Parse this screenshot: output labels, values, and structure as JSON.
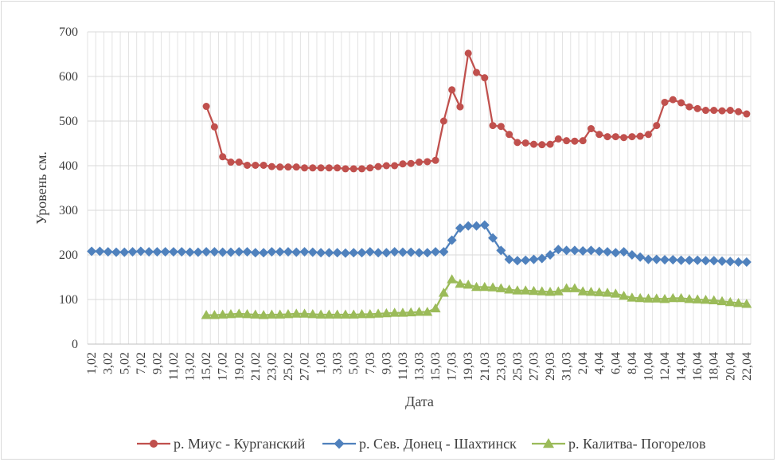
{
  "chart_data": {
    "type": "line",
    "xlabel": "Дата",
    "ylabel": "Уровень см.",
    "ylim": [
      0,
      700
    ],
    "yticks": [
      0,
      100,
      200,
      300,
      400,
      500,
      600,
      700
    ],
    "grid": true,
    "legend_position": "bottom",
    "x": [
      "1,02",
      "2,02",
      "3,02",
      "4,02",
      "5,02",
      "6,02",
      "7,02",
      "8,02",
      "9,02",
      "10,02",
      "11,02",
      "12,02",
      "13,02",
      "14,02",
      "15,02",
      "16,02",
      "17,02",
      "18,02",
      "19,02",
      "20,02",
      "21,02",
      "22,02",
      "23,02",
      "24,02",
      "25,02",
      "26,02",
      "27,02",
      "28,02",
      "1,03",
      "2,03",
      "3,03",
      "4,03",
      "5,03",
      "6,03",
      "7,03",
      "8,03",
      "9,03",
      "10,03",
      "11,03",
      "12,03",
      "13,03",
      "14,03",
      "15,03",
      "16,03",
      "17,03",
      "18,03",
      "19,03",
      "20,03",
      "21,03",
      "22,03",
      "23,03",
      "24,03",
      "25,03",
      "26,03",
      "27,03",
      "28,03",
      "29,03",
      "30,03",
      "31,03",
      "1,04",
      "2,04",
      "3,04",
      "4,04",
      "5,04",
      "6,04",
      "7,04",
      "8,04",
      "9,04",
      "10,04",
      "11,04",
      "12,04",
      "13,04",
      "14,04",
      "15,04",
      "16,04",
      "17,04",
      "18,04",
      "19,04",
      "20,04",
      "21,04",
      "22,04"
    ],
    "x_tick_labels": [
      "1,02",
      "3,02",
      "5,02",
      "7,02",
      "9,02",
      "11,02",
      "13,02",
      "15,02",
      "17,02",
      "19,02",
      "21,02",
      "23,02",
      "25,02",
      "27,02",
      "1,03",
      "3,03",
      "5,03",
      "7,03",
      "9,03",
      "11,03",
      "13,03",
      "15,03",
      "17,03",
      "19,03",
      "21,03",
      "23,03",
      "25,03",
      "27,03",
      "29,03",
      "31,03",
      "2,04",
      "4,04",
      "6,04",
      "8,04",
      "10,04",
      "12,04",
      "14,04",
      "16,04",
      "18,04",
      "20,04",
      "22,04"
    ],
    "series": [
      {
        "name": "р. Миус - Курганский",
        "color": "#c0504d",
        "marker": "circle",
        "values": [
          null,
          null,
          null,
          null,
          null,
          null,
          null,
          null,
          null,
          null,
          null,
          null,
          null,
          null,
          533,
          487,
          420,
          408,
          408,
          401,
          401,
          401,
          398,
          397,
          397,
          397,
          395,
          395,
          395,
          395,
          395,
          393,
          393,
          393,
          395,
          398,
          400,
          400,
          404,
          405,
          408,
          409,
          412,
          500,
          570,
          532,
          652,
          609,
          597,
          490,
          488,
          470,
          452,
          451,
          448,
          447,
          448,
          460,
          456,
          455,
          456,
          483,
          470,
          465,
          465,
          463,
          465,
          466,
          470,
          490,
          542,
          548,
          541,
          532,
          528,
          524,
          524,
          523,
          524,
          521,
          516
        ]
      },
      {
        "name": "р. Сев. Донец - Шахтинск",
        "color": "#4f81bd",
        "marker": "diamond",
        "values": [
          208,
          208,
          207,
          206,
          206,
          207,
          208,
          207,
          207,
          207,
          207,
          207,
          206,
          206,
          207,
          207,
          206,
          206,
          207,
          207,
          205,
          205,
          207,
          207,
          207,
          206,
          207,
          206,
          205,
          205,
          205,
          204,
          205,
          205,
          207,
          205,
          205,
          207,
          206,
          206,
          205,
          205,
          207,
          207,
          233,
          260,
          265,
          265,
          267,
          238,
          210,
          190,
          187,
          188,
          190,
          192,
          200,
          212,
          210,
          210,
          209,
          210,
          208,
          207,
          205,
          207,
          200,
          195,
          190,
          190,
          189,
          189,
          188,
          188,
          188,
          187,
          187,
          186,
          185,
          184,
          184
        ]
      },
      {
        "name": "р. Калитва- Погорелов",
        "color": "#9bbb59",
        "marker": "triangle",
        "values": [
          null,
          null,
          null,
          null,
          null,
          null,
          null,
          null,
          null,
          null,
          null,
          null,
          null,
          null,
          65,
          65,
          66,
          67,
          68,
          67,
          66,
          65,
          66,
          66,
          67,
          68,
          68,
          67,
          66,
          66,
          66,
          66,
          66,
          67,
          67,
          68,
          69,
          70,
          70,
          71,
          72,
          72,
          80,
          115,
          145,
          135,
          133,
          128,
          128,
          127,
          125,
          122,
          120,
          120,
          119,
          118,
          117,
          118,
          125,
          125,
          118,
          117,
          116,
          115,
          113,
          108,
          104,
          103,
          102,
          102,
          101,
          103,
          103,
          101,
          100,
          99,
          98,
          96,
          94,
          92,
          90
        ]
      }
    ]
  }
}
